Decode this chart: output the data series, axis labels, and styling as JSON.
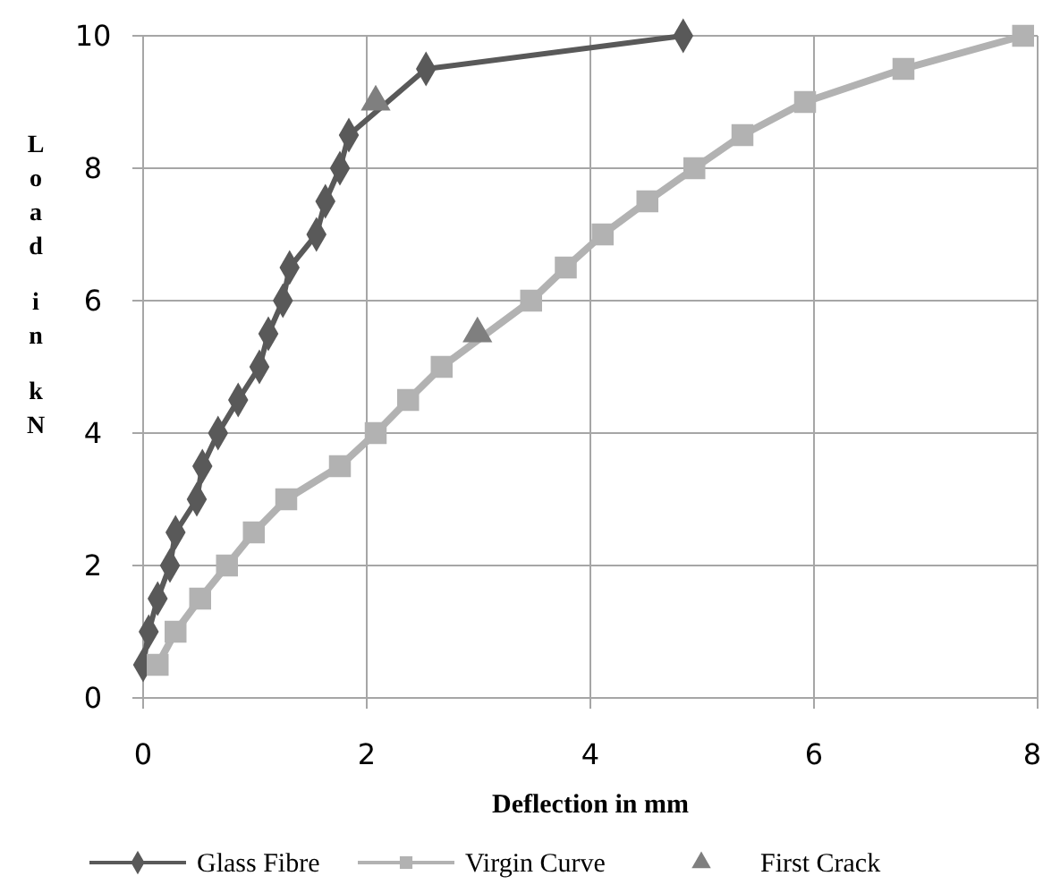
{
  "chart_data": {
    "type": "line",
    "xlabel": "Deflection in mm",
    "ylabel": "Load in kN",
    "xlim": [
      0,
      8
    ],
    "xticks": [
      0,
      2,
      4,
      6,
      8
    ],
    "ylim": [
      0,
      10
    ],
    "yticks": [
      0,
      2,
      4,
      6,
      8,
      10
    ],
    "grid": true,
    "legend": "bottom",
    "line_style": "solid",
    "series": [
      {
        "name": "Glass Fibre",
        "color": "#595959",
        "marker": "diamond",
        "x": [
          0,
          0.05,
          0.13,
          0.24,
          0.29,
          0.48,
          0.53,
          0.67,
          0.85,
          1.04,
          1.12,
          1.25,
          1.31,
          1.55,
          1.63,
          1.76,
          1.84,
          2.53,
          4.83
        ],
        "values": [
          0.5,
          1,
          1.5,
          2,
          2.5,
          3,
          3.5,
          4,
          4.5,
          5,
          5.5,
          6,
          6.5,
          7,
          7.5,
          8,
          8.5,
          9.5,
          10
        ]
      },
      {
        "name": "Virgin Curve",
        "color": "#b2b2b2",
        "marker": "square",
        "x": [
          0.13,
          0.29,
          0.51,
          0.75,
          0.99,
          1.28,
          1.76,
          2.08,
          2.37,
          2.67,
          3.47,
          3.78,
          4.11,
          4.51,
          4.93,
          5.36,
          5.92,
          6.8,
          7.87
        ],
        "values": [
          0.5,
          1,
          1.5,
          2,
          2.5,
          3,
          3.5,
          4,
          4.5,
          5,
          6,
          6.5,
          7,
          7.5,
          8,
          8.5,
          9,
          9.5,
          10
        ]
      },
      {
        "name": "First Crack",
        "type": "scatter",
        "color": "#7f7f7f",
        "marker": "triangle",
        "x": [
          2.08,
          2.99
        ],
        "values": [
          9,
          5.5
        ]
      }
    ]
  }
}
